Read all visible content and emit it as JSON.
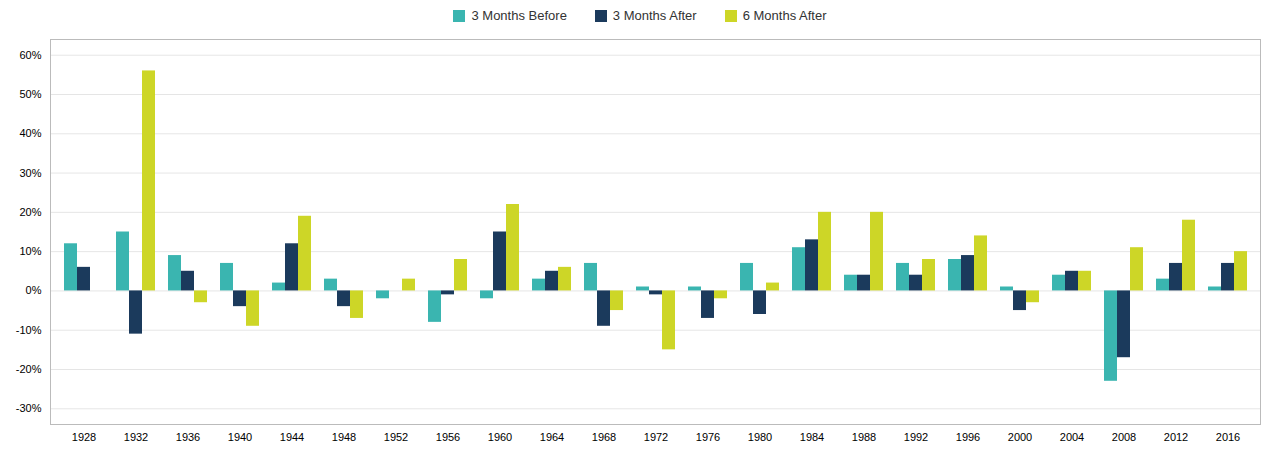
{
  "chart_data": {
    "type": "bar",
    "categories": [
      "1928",
      "1932",
      "1936",
      "1940",
      "1944",
      "1948",
      "1952",
      "1956",
      "1960",
      "1964",
      "1968",
      "1972",
      "1976",
      "1980",
      "1984",
      "1988",
      "1992",
      "1996",
      "2000",
      "2004",
      "2008",
      "2012",
      "2016"
    ],
    "series": [
      {
        "name": "3 Months Before",
        "color": "#3ab5b0",
        "values": [
          12,
          15,
          9,
          7,
          2,
          3,
          -2,
          -8,
          -2,
          3,
          7,
          1,
          1,
          7,
          11,
          4,
          7,
          8,
          1,
          4,
          -23,
          3,
          1
        ]
      },
      {
        "name": "3 Months After",
        "color": "#1b3a5c",
        "values": [
          6,
          -11,
          5,
          -4,
          12,
          -4,
          0,
          -1,
          15,
          5,
          -9,
          -1,
          -7,
          -6,
          13,
          4,
          4,
          9,
          -5,
          5,
          -17,
          7,
          7
        ]
      },
      {
        "name": "6 Months After",
        "color": "#cdd627",
        "values": [
          0,
          56,
          -3,
          -9,
          19,
          -7,
          3,
          8,
          22,
          6,
          -5,
          -15,
          -2,
          2,
          20,
          20,
          8,
          14,
          -3,
          5,
          11,
          18,
          10
        ]
      }
    ],
    "ylim": [
      -34,
      64
    ],
    "yticks": [
      {
        "value": -30,
        "label": "-30%"
      },
      {
        "value": -20,
        "label": "-20%"
      },
      {
        "value": -10,
        "label": "-10%"
      },
      {
        "value": 0,
        "label": "0%"
      },
      {
        "value": 10,
        "label": "10%"
      },
      {
        "value": 20,
        "label": "20%"
      },
      {
        "value": 30,
        "label": "30%"
      },
      {
        "value": 40,
        "label": "40%"
      },
      {
        "value": 50,
        "label": "50%"
      },
      {
        "value": 60,
        "label": "60%"
      }
    ],
    "grid": true,
    "legend": "top"
  }
}
